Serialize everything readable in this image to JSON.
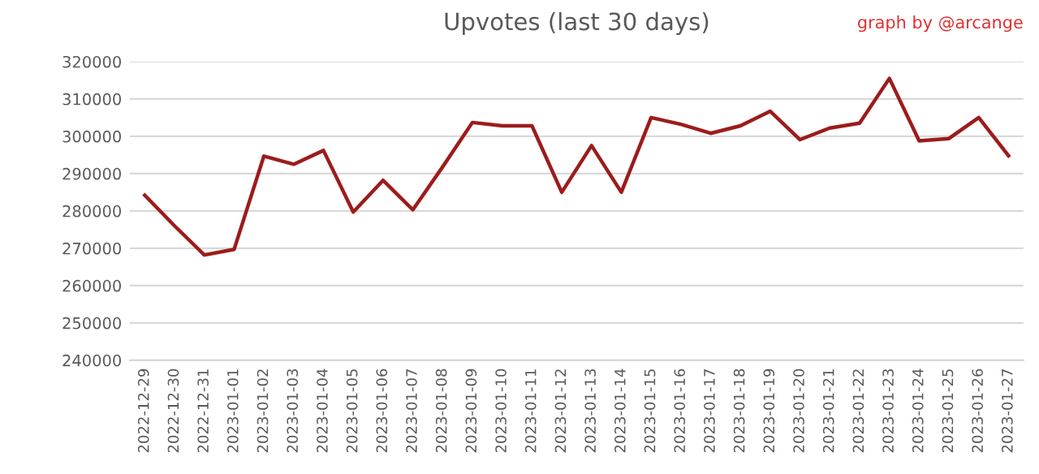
{
  "chart_data": {
    "type": "line",
    "title": "Upvotes (last 30 days)",
    "annotations": [
      "graph by @arcange"
    ],
    "categories": [
      "2022-12-29",
      "2022-12-30",
      "2022-12-31",
      "2023-01-01",
      "2023-01-02",
      "2023-01-03",
      "2023-01-04",
      "2023-01-05",
      "2023-01-06",
      "2023-01-07",
      "2023-01-08",
      "2023-01-09",
      "2023-01-10",
      "2023-01-11",
      "2023-01-12",
      "2023-01-13",
      "2023-01-14",
      "2023-01-15",
      "2023-01-16",
      "2023-01-17",
      "2023-01-18",
      "2023-01-19",
      "2023-01-20",
      "2023-01-21",
      "2023-01-22",
      "2023-01-23",
      "2023-01-24",
      "2023-01-25",
      "2023-01-26",
      "2023-01-27"
    ],
    "series": [
      {
        "color": "#9c1c1c",
        "values": [
          284200,
          276000,
          268200,
          269700,
          294700,
          292500,
          296200,
          279700,
          288200,
          280300,
          291800,
          303700,
          302800,
          302800,
          285000,
          297500,
          285000,
          305000,
          303200,
          300800,
          302800,
          306700,
          299100,
          302200,
          303500,
          315500,
          298800,
          299400,
          305000,
          294800
        ]
      }
    ],
    "ylim": [
      240000,
      320000
    ],
    "yticks": [
      240000,
      250000,
      260000,
      270000,
      280000,
      290000,
      300000,
      310000,
      320000
    ],
    "grid": "y",
    "marker": "none",
    "line_style": "solid"
  }
}
